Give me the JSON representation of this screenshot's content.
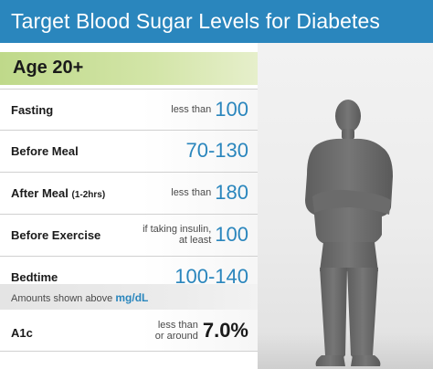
{
  "title": "Target Blood Sugar Levels for Diabetes",
  "age_group": "Age 20+",
  "rows": [
    {
      "label": "Fasting",
      "sublabel": "",
      "prefix_line1": "less than",
      "prefix_line2": "",
      "value": "100"
    },
    {
      "label": "Before Meal",
      "sublabel": "",
      "prefix_line1": "",
      "prefix_line2": "",
      "value": "70-130"
    },
    {
      "label": "After Meal",
      "sublabel": "(1-2hrs)",
      "prefix_line1": "less than",
      "prefix_line2": "",
      "value": "180"
    },
    {
      "label": "Before Exercise",
      "sublabel": "",
      "prefix_line1": "if taking insulin,",
      "prefix_line2": "at least",
      "value": "100"
    },
    {
      "label": "Bedtime",
      "sublabel": "",
      "prefix_line1": "",
      "prefix_line2": "",
      "value": "100-140"
    }
  ],
  "note": {
    "text": "Amounts shown above",
    "unit": "mg/dL"
  },
  "a1c": {
    "label": "A1c",
    "prefix_line1": "less than",
    "prefix_line2": "or around",
    "value": "7.0%"
  },
  "colors": {
    "title_bg": "#2a86bd",
    "value_blue": "#2a86bd",
    "age_bar_green": "#bfd98a",
    "silhouette": "#6f6f6f"
  },
  "icons": {
    "figure": "man-silhouette-icon"
  }
}
